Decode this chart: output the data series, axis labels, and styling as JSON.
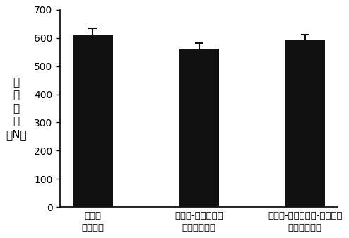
{
  "categories": [
    "未改性\n混纺织物",
    "多巴胺-聚乙烯亚胺\n改性混纺织物",
    "多巴胺-聚乙烯亚胺-纳米颗粒\n改性混纺织物"
  ],
  "values": [
    612,
    562,
    595
  ],
  "errors": [
    22,
    20,
    16
  ],
  "bar_color": "#111111",
  "bar_width": 0.38,
  "ylim": [
    0,
    700
  ],
  "yticks": [
    0,
    100,
    200,
    300,
    400,
    500,
    600,
    700
  ],
  "ylabel_chars": [
    "拉",
    "伸",
    "强",
    "度",
    "（N）"
  ],
  "ylabel_fontsize": 11,
  "tick_fontsize": 10,
  "xlabel_fontsize": 9.5,
  "background_color": "#ffffff",
  "error_capsize": 4,
  "error_color": "#111111",
  "error_linewidth": 1.5
}
